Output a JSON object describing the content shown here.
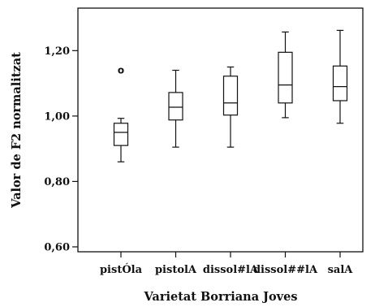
{
  "chart_data": {
    "type": "boxplot",
    "title": "",
    "xlabel": "Varietat Borriana Joves",
    "ylabel": "Valor de F2 normalitzat",
    "ylim": [
      0.585,
      1.33
    ],
    "yticks": [
      0.6,
      0.8,
      1.0,
      1.2
    ],
    "ytick_labels": [
      "0,60",
      "0,80",
      "1,00",
      "1,20"
    ],
    "grid": false,
    "categories": [
      "pistÓla",
      "pistolA",
      "dissol#lA",
      "dissol##lA",
      "salA"
    ],
    "boxes": [
      {
        "category": "pistÓla",
        "whisker_low": 0.86,
        "q1": 0.91,
        "median": 0.95,
        "q3": 0.978,
        "whisker_high": 0.993,
        "outliers": [
          1.14
        ]
      },
      {
        "category": "pistolA",
        "whisker_low": 0.905,
        "q1": 0.988,
        "median": 1.027,
        "q3": 1.072,
        "whisker_high": 1.14,
        "outliers": []
      },
      {
        "category": "dissol#lA",
        "whisker_low": 0.905,
        "q1": 1.003,
        "median": 1.04,
        "q3": 1.122,
        "whisker_high": 1.15,
        "outliers": []
      },
      {
        "category": "dissol##lA",
        "whisker_low": 0.995,
        "q1": 1.04,
        "median": 1.095,
        "q3": 1.195,
        "whisker_high": 1.257,
        "outliers": []
      },
      {
        "category": "salA",
        "whisker_low": 0.978,
        "q1": 1.047,
        "median": 1.09,
        "q3": 1.153,
        "whisker_high": 1.262,
        "outliers": []
      }
    ],
    "outlier_marker": "o"
  }
}
